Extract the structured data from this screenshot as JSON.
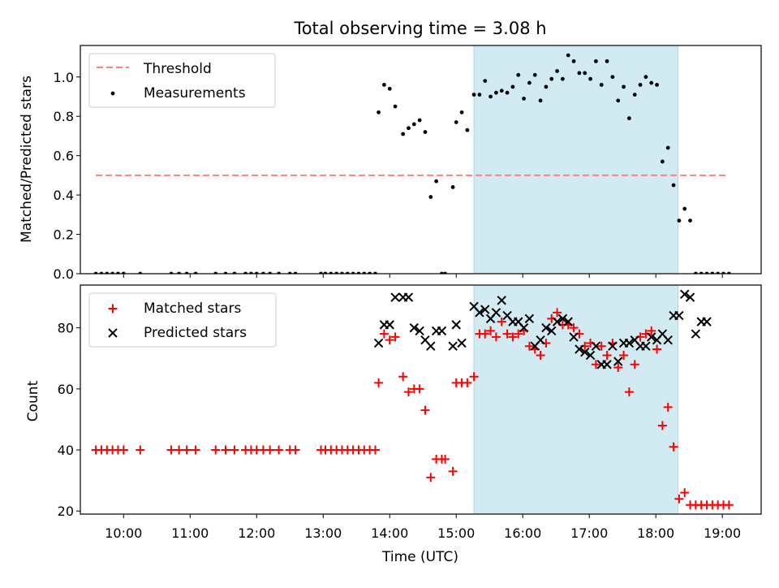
{
  "title": "Total observing time = 3.08 h",
  "colors": {
    "threshold": "#ff7f7f",
    "measurement": "#000000",
    "matched": "#ff0000",
    "predicted": "#000000",
    "span_fill": "#add8e6"
  },
  "chart_data": [
    {
      "type": "scatter",
      "panel": "top",
      "title": "Total observing time = 3.08 h",
      "xlabel": "",
      "ylabel": "Matched/Predicted stars",
      "xlim": [
        "09:21",
        "19:35"
      ],
      "ylim": [
        0,
        1.16
      ],
      "yticks": [
        0.0,
        0.2,
        0.4,
        0.6,
        0.8,
        1.0
      ],
      "ytick_labels": [
        "0.0",
        "0.2",
        "0.4",
        "0.6",
        "0.8",
        "1.0"
      ],
      "shaded_span": [
        "15:16",
        "18:20"
      ],
      "legend": {
        "placement": "top-left",
        "entries": [
          "Threshold",
          "Measurements"
        ]
      },
      "threshold": {
        "name": "Threshold",
        "value": 0.5,
        "x_range": [
          "09:35",
          "19:05"
        ],
        "style": "dashed"
      },
      "series": [
        {
          "name": "Measurements",
          "x": [
            "09:35",
            "09:40",
            "09:45",
            "09:50",
            "09:55",
            "10:00",
            "10:15",
            "10:43",
            "10:50",
            "10:57",
            "11:05",
            "11:23",
            "11:32",
            "11:40",
            "11:50",
            "11:55",
            "12:00",
            "12:06",
            "12:12",
            "12:20",
            "12:30",
            "12:35",
            "12:58",
            "13:02",
            "13:07",
            "13:12",
            "13:17",
            "13:22",
            "13:27",
            "13:32",
            "13:37",
            "13:42",
            "13:47",
            "13:50",
            "13:55",
            "14:00",
            "14:05",
            "14:12",
            "14:17",
            "14:22",
            "14:27",
            "14:32",
            "14:37",
            "14:42",
            "14:47",
            "14:50",
            "14:57",
            "15:00",
            "15:05",
            "15:10",
            "15:16",
            "15:21",
            "15:26",
            "15:31",
            "15:36",
            "15:41",
            "15:46",
            "15:51",
            "15:56",
            "16:01",
            "16:06",
            "16:11",
            "16:16",
            "16:21",
            "16:26",
            "16:31",
            "16:36",
            "16:41",
            "16:46",
            "16:51",
            "16:56",
            "17:01",
            "17:06",
            "17:11",
            "17:16",
            "17:21",
            "17:26",
            "17:31",
            "17:36",
            "17:41",
            "17:46",
            "17:51",
            "17:56",
            "18:01",
            "18:06",
            "18:11",
            "18:16",
            "18:21",
            "18:26",
            "18:31",
            "18:36",
            "18:41",
            "18:46",
            "18:51",
            "18:56",
            "19:01",
            "19:06"
          ],
          "y": [
            0,
            0,
            0,
            0,
            0,
            0,
            0,
            0,
            0,
            0,
            0,
            0,
            0,
            0,
            0,
            0,
            0,
            0,
            0,
            0,
            0,
            0,
            0,
            0,
            0,
            0,
            0,
            0,
            0,
            0,
            0,
            0,
            0,
            0.82,
            0.96,
            0.94,
            0.85,
            0.71,
            0.74,
            0.76,
            0.78,
            0.72,
            0.39,
            0.47,
            0,
            0,
            0.44,
            0.77,
            0.82,
            0.73,
            0.91,
            0.91,
            0.98,
            0.9,
            0.92,
            0.93,
            0.92,
            0.95,
            1.01,
            0.89,
            0.97,
            1.01,
            0.88,
            0.95,
            0.99,
            1.03,
            0.99,
            1.11,
            1.08,
            1.02,
            1.02,
            0.99,
            1.08,
            0.96,
            1.08,
            1.0,
            0.88,
            0.95,
            0.79,
            0.91,
            0.96,
            1.0,
            0.97,
            0.96,
            0.57,
            0.64,
            0.45,
            0.27,
            0.33,
            0.27,
            0,
            0,
            0,
            0,
            0,
            0,
            0
          ]
        }
      ]
    },
    {
      "type": "scatter",
      "panel": "bottom",
      "title": "",
      "xlabel": "Time (UTC)",
      "ylabel": "Count",
      "xlim": [
        "09:21",
        "19:35"
      ],
      "ylim": [
        19,
        94
      ],
      "yticks": [
        20,
        40,
        60,
        80
      ],
      "ytick_labels": [
        "20",
        "40",
        "60",
        "80"
      ],
      "xticks": [
        "10:00",
        "11:00",
        "12:00",
        "13:00",
        "14:00",
        "15:00",
        "16:00",
        "17:00",
        "18:00",
        "19:00"
      ],
      "xtick_labels": [
        "10:00",
        "11:00",
        "12:00",
        "13:00",
        "14:00",
        "15:00",
        "16:00",
        "17:00",
        "18:00",
        "19:00"
      ],
      "shaded_span": [
        "15:16",
        "18:20"
      ],
      "legend": {
        "placement": "top-left",
        "entries": [
          "Matched stars",
          "Predicted stars"
        ]
      },
      "series": [
        {
          "name": "Matched stars",
          "marker": "plus",
          "x": [
            "09:35",
            "09:40",
            "09:45",
            "09:50",
            "09:55",
            "10:00",
            "10:15",
            "10:43",
            "10:50",
            "10:57",
            "11:05",
            "11:23",
            "11:32",
            "11:40",
            "11:50",
            "11:55",
            "12:00",
            "12:06",
            "12:12",
            "12:20",
            "12:30",
            "12:35",
            "12:58",
            "13:02",
            "13:07",
            "13:12",
            "13:17",
            "13:22",
            "13:27",
            "13:32",
            "13:37",
            "13:42",
            "13:47",
            "13:50",
            "13:55",
            "14:00",
            "14:05",
            "14:12",
            "14:17",
            "14:22",
            "14:27",
            "14:32",
            "14:37",
            "14:42",
            "14:47",
            "14:50",
            "14:57",
            "15:00",
            "15:05",
            "15:10",
            "15:16",
            "15:21",
            "15:26",
            "15:31",
            "15:36",
            "15:41",
            "15:46",
            "15:51",
            "15:56",
            "16:01",
            "16:06",
            "16:11",
            "16:16",
            "16:21",
            "16:26",
            "16:31",
            "16:36",
            "16:41",
            "16:46",
            "16:51",
            "16:56",
            "17:01",
            "17:06",
            "17:11",
            "17:16",
            "17:21",
            "17:26",
            "17:31",
            "17:36",
            "17:41",
            "17:46",
            "17:51",
            "17:56",
            "18:01",
            "18:06",
            "18:11",
            "18:16",
            "18:21",
            "18:26",
            "18:31",
            "18:36",
            "18:41",
            "18:46",
            "18:51",
            "18:56",
            "19:01",
            "19:06"
          ],
          "y": [
            40,
            40,
            40,
            40,
            40,
            40,
            40,
            40,
            40,
            40,
            40,
            40,
            40,
            40,
            40,
            40,
            40,
            40,
            40,
            40,
            40,
            40,
            40,
            40,
            40,
            40,
            40,
            40,
            40,
            40,
            40,
            40,
            40,
            62,
            78,
            76,
            77,
            64,
            59,
            60,
            60,
            53,
            31,
            37,
            37,
            37,
            33,
            62,
            62,
            62,
            64,
            78,
            78,
            79,
            77,
            82,
            78,
            77,
            78,
            79,
            74,
            73,
            71,
            75,
            83,
            85,
            81,
            81,
            80,
            78,
            74,
            75,
            68,
            74,
            71,
            75,
            67,
            71,
            59,
            68,
            77,
            78,
            79,
            73,
            48,
            54,
            41,
            24,
            26,
            22,
            22,
            22,
            22,
            22,
            22,
            22,
            22
          ]
        },
        {
          "name": "Predicted stars",
          "marker": "x",
          "x": [
            "13:50",
            "13:55",
            "14:00",
            "14:05",
            "14:12",
            "14:17",
            "14:22",
            "14:27",
            "14:32",
            "14:37",
            "14:42",
            "14:47",
            "14:57",
            "15:00",
            "15:05",
            "15:16",
            "15:21",
            "15:26",
            "15:31",
            "15:36",
            "15:41",
            "15:46",
            "15:51",
            "15:56",
            "16:01",
            "16:06",
            "16:11",
            "16:16",
            "16:21",
            "16:26",
            "16:31",
            "16:36",
            "16:41",
            "16:46",
            "16:51",
            "16:56",
            "17:01",
            "17:06",
            "17:11",
            "17:16",
            "17:21",
            "17:26",
            "17:31",
            "17:36",
            "17:41",
            "17:46",
            "17:51",
            "17:56",
            "18:01",
            "18:06",
            "18:11",
            "18:16",
            "18:21",
            "18:26",
            "18:31",
            "18:36",
            "18:41",
            "18:46"
          ],
          "y": [
            75,
            81,
            81,
            90,
            90,
            90,
            80,
            79,
            76,
            74,
            79,
            79,
            74,
            81,
            75,
            87,
            85,
            86,
            83,
            85,
            89,
            84,
            82,
            82,
            80,
            83,
            74,
            76,
            80,
            79,
            82,
            83,
            82,
            77,
            73,
            72,
            71,
            74,
            68,
            68,
            74,
            69,
            75,
            75,
            76,
            74,
            74,
            77,
            76,
            78,
            76,
            84,
            84,
            91,
            90,
            78,
            82,
            82
          ]
        }
      ]
    }
  ]
}
